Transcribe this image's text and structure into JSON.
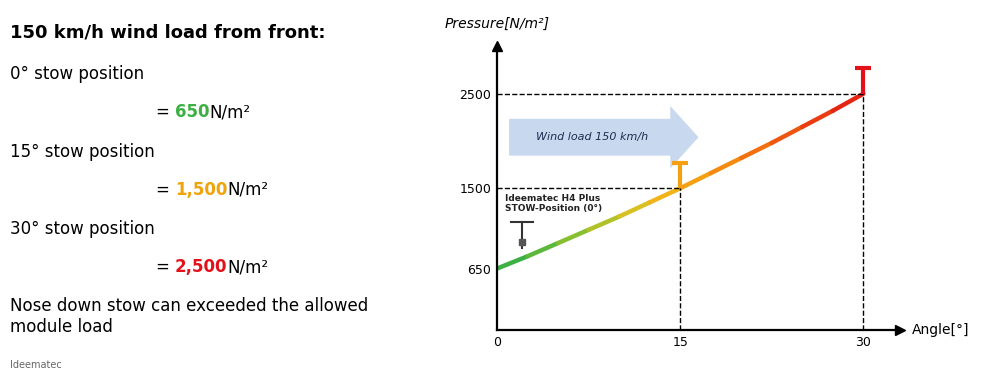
{
  "chart_data": {
    "type": "line",
    "x_label": "Angle[°]",
    "y_label": "Pressure[N/m²]",
    "x": [
      0,
      2.5,
      5,
      7.5,
      10,
      12.5,
      15,
      17.5,
      20,
      22.5,
      25,
      27.5,
      30
    ],
    "values": [
      650,
      780,
      920,
      1060,
      1200,
      1350,
      1500,
      1660,
      1820,
      1980,
      2150,
      2320,
      2500
    ],
    "colors": [
      "#3cb043",
      "#5cb83a",
      "#86bf30",
      "#b0c228",
      "#d8c020",
      "#f0b418",
      "#f5a012",
      "#f58a10",
      "#f2700f",
      "#ee560f",
      "#ea3c10",
      "#e62412",
      "#e3121a"
    ],
    "xlim": [
      0,
      33
    ],
    "ylim": [
      0,
      3000
    ],
    "xticks": [
      0,
      15,
      30
    ],
    "yticks": [
      650,
      1500,
      2500
    ],
    "grid": false,
    "annotations": {
      "wind": "Wind load 150 km/h",
      "stow": "Ideematec H4 Plus\nSTOW-Position (0°)"
    }
  },
  "text_panel": {
    "heading": "150 km/h wind load from front:",
    "items": [
      {
        "label": "0° stow position",
        "prefix": "=",
        "value": "650",
        "unit": "N/m²",
        "color": "#3cb043"
      },
      {
        "label": "15° stow position",
        "prefix": "=",
        "value": "1,500",
        "unit": "N/m²",
        "color": "#f0a30a"
      },
      {
        "label": "30° stow position",
        "prefix": "=",
        "value": "2,500",
        "unit": "N/m²",
        "color": "#e3121a"
      }
    ],
    "note": "Nose down stow can exceeded the allowed\nmodule load",
    "source": "Ideematec"
  }
}
